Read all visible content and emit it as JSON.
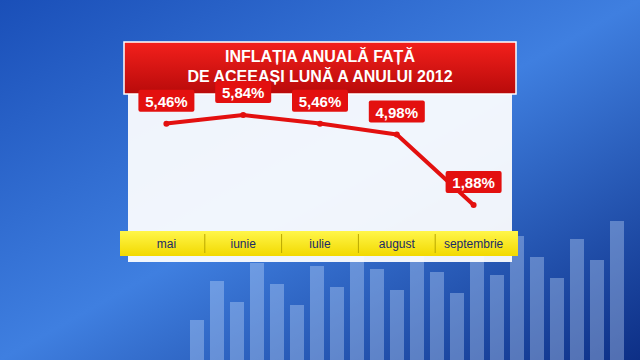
{
  "chart_data": {
    "type": "line",
    "title": "INFLAȚIA ANUALĂ FAȚĂ\nDE ACEEAȘI LUNĂ A ANULUI 2012",
    "categories": [
      "mai",
      "iunie",
      "iulie",
      "august",
      "septembrie"
    ],
    "values": [
      5.46,
      5.84,
      5.46,
      4.98,
      1.88
    ],
    "value_labels": [
      "5,46%",
      "5,84%",
      "5,46%",
      "4,98%",
      "1,88%"
    ],
    "color": "#e3100f",
    "ylim": [
      1,
      6.5
    ],
    "data_labels": true,
    "tick_labels": "x",
    "grid": false
  }
}
